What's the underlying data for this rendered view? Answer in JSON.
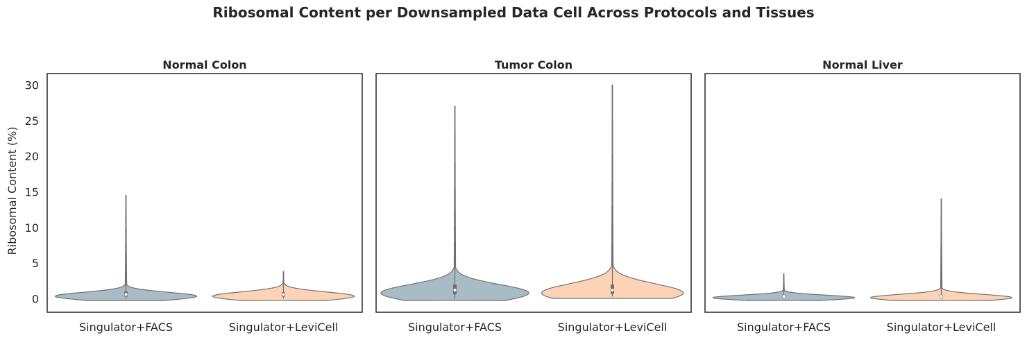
{
  "chart_data": {
    "type": "violin",
    "title": "Ribosomal Content per Downsampled Data Cell Across Protocols and Tissues",
    "ylabel": "Ribosomal Content (%)",
    "ylim": [
      -1.9,
      31.6
    ],
    "yticks": [
      0,
      5,
      10,
      15,
      20,
      25,
      30
    ],
    "categories": [
      "Singulator+FACS",
      "Singulator+LeviCell"
    ],
    "colors": {
      "Singulator+FACS": "#a9bcc6",
      "Singulator+LeviCell": "#fcd3b6"
    },
    "grid": false,
    "panels": [
      {
        "title": "Normal Colon",
        "violins": [
          {
            "category": "Singulator+FACS",
            "min": 0.0,
            "q1": 0.3,
            "median": 0.6,
            "q3": 1.0,
            "max": 14.5,
            "dense_center": 0.35,
            "dense_halfwidth": 0.45,
            "dense_spread": 0.55
          },
          {
            "category": "Singulator+LeviCell",
            "min": 0.0,
            "q1": 0.3,
            "median": 0.6,
            "q3": 0.9,
            "max": 3.8,
            "dense_center": 0.35,
            "dense_halfwidth": 0.45,
            "dense_spread": 0.6
          }
        ]
      },
      {
        "title": "Tumor Colon",
        "violins": [
          {
            "category": "Singulator+FACS",
            "min": 0.0,
            "q1": 0.6,
            "median": 1.2,
            "q3": 2.0,
            "max": 27.0,
            "dense_center": 0.8,
            "dense_halfwidth": 0.47,
            "dense_spread": 1.2
          },
          {
            "category": "Singulator+LeviCell",
            "min": 0.3,
            "q1": 0.7,
            "median": 1.2,
            "q3": 2.0,
            "max": 30.0,
            "dense_center": 0.8,
            "dense_halfwidth": 0.45,
            "dense_spread": 1.3
          }
        ]
      },
      {
        "title": "Normal Liver",
        "violins": [
          {
            "category": "Singulator+FACS",
            "min": 0.0,
            "q1": 0.1,
            "median": 0.3,
            "q3": 0.5,
            "max": 3.5,
            "dense_center": 0.15,
            "dense_halfwidth": 0.45,
            "dense_spread": 0.35
          },
          {
            "category": "Singulator+LeviCell",
            "min": 0.0,
            "q1": 0.1,
            "median": 0.3,
            "q3": 0.5,
            "max": 14.0,
            "dense_center": 0.15,
            "dense_halfwidth": 0.45,
            "dense_spread": 0.45
          }
        ]
      }
    ]
  }
}
